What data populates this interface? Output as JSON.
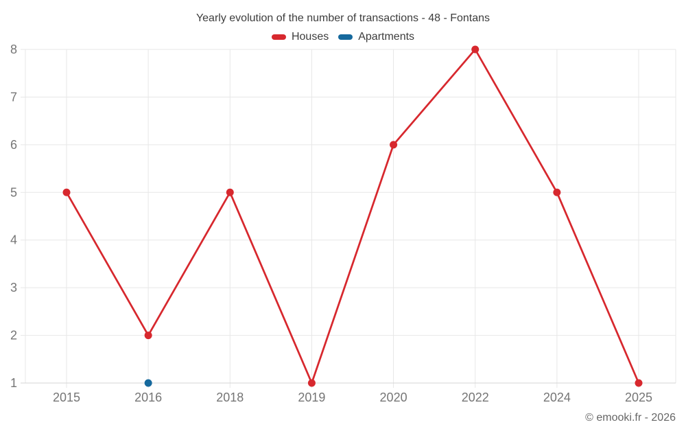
{
  "title": "Yearly evolution of the number of transactions - 48 - Fontans",
  "footer": "© emooki.fr - 2026",
  "legend": {
    "items": [
      {
        "label": "Houses",
        "color": "#d7282e"
      },
      {
        "label": "Apartments",
        "color": "#16699d"
      }
    ]
  },
  "chart_data": {
    "type": "line",
    "title": "Yearly evolution of the number of transactions - 48 - Fontans",
    "categories": [
      "2015",
      "2016",
      "2018",
      "2019",
      "2020",
      "2022",
      "2024",
      "2025"
    ],
    "series": [
      {
        "name": "Houses",
        "color": "#d7282e",
        "values": [
          5,
          2,
          5,
          1,
          6,
          8,
          5,
          1
        ]
      },
      {
        "name": "Apartments",
        "color": "#16699d",
        "values": [
          null,
          1,
          null,
          null,
          null,
          null,
          null,
          null
        ]
      }
    ],
    "xlabel": "",
    "ylabel": "",
    "ylim": [
      1,
      8
    ],
    "yticks": [
      1,
      2,
      3,
      4,
      5,
      6,
      7,
      8
    ],
    "grid": true,
    "legend_position": "top"
  },
  "colors": {
    "grid": "#e7e7e7",
    "axis": "#d5d5d5",
    "tick_text": "#757575",
    "title_text": "#3d3d3d",
    "footer_text": "#666666",
    "background": "#ffffff"
  }
}
